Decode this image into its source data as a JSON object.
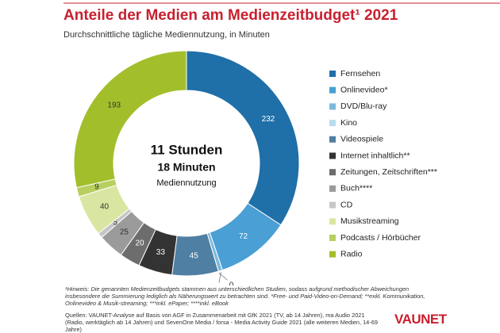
{
  "chart_data": {
    "type": "donut",
    "title": "Anteile der Medien am Medienzeitbudget¹ 2021",
    "subtitle": "Durchschnittliche tägliche Mediennutzung, in Minuten",
    "center_text": [
      "11 Stunden",
      "18 Minuten",
      "Mediennutzung"
    ],
    "categories": [
      "Fernsehen",
      "Onlinevideo*",
      "DVD/Blu-ray",
      "Kino",
      "Videospiele",
      "Internet inhaltlich**",
      "Zeitungen, Zeitschriften***",
      "Buch****",
      "CD",
      "Musikstreaming",
      "Podcasts / Hörbücher",
      "Radio"
    ],
    "values": [
      232,
      72,
      4,
      0,
      45,
      33,
      20,
      25,
      5,
      40,
      9,
      193
    ],
    "colors": [
      "#1f6fa8",
      "#4a9fd4",
      "#7cb9dd",
      "#b8dcef",
      "#4f7fa3",
      "#333333",
      "#6d6d6d",
      "#9b9b9b",
      "#c6c6c6",
      "#d9e6a1",
      "#b7cf5e",
      "#a2bf2b"
    ],
    "footnote": "¹Hinweis: Die genannten Medienzeitbudgets stammen aus unterschiedlichen Studien, sodass aufgrund methodischer Abweichungen insbesondere die Summierung lediglich als Näherungswert zu betrachten sind. *Free- und Paid-Video-on-Demand; **exkl. Kommunikation, Onlinevideo & Musik-streaming; ***inkl. ePaper; ****inkl. eBook",
    "source": "Quellen: VAUNET-Analyse auf Basis von AGF in Zusammenarbeit mit GfK 2021 (TV, ab 14 Jahren), ma Audio 2021 (Radio, werktäglich ab 14 Jahren) und SevenOne Media / forsa - Media Activity Guide 2021 (alle weiteren Medien, 14-69 Jahre)",
    "logo": "VAUNET"
  }
}
